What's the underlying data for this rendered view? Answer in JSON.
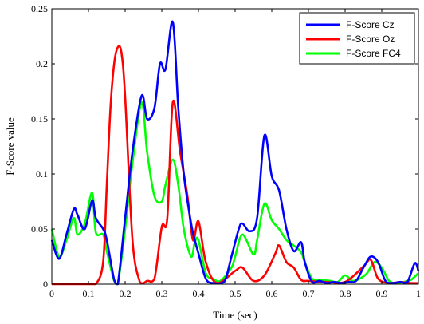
{
  "chart_data": {
    "type": "line",
    "title": "",
    "xlabel": "Time (sec)",
    "ylabel": "F-Score value",
    "xlim": [
      0,
      1
    ],
    "ylim": [
      0,
      0.25
    ],
    "xticks": [
      0,
      0.1,
      0.2,
      0.3,
      0.4,
      0.5,
      0.6,
      0.7,
      0.8,
      0.9,
      1
    ],
    "xtick_labels": [
      "0",
      "0.1",
      "0.2",
      "0.3",
      "0.4",
      "0.5",
      "0.6",
      "0.7",
      "0.8",
      "0.9",
      "1"
    ],
    "yticks": [
      0,
      0.05,
      0.1,
      0.15,
      0.2,
      0.25
    ],
    "ytick_labels": [
      "0",
      "0.05",
      "0.1",
      "0.15",
      "0.2",
      "0.25"
    ],
    "grid": false,
    "legend_position": "top-right",
    "series": [
      {
        "name": "F-Score Cz",
        "color": "#0000ff",
        "x": [
          0,
          0.02,
          0.04,
          0.06,
          0.07,
          0.09,
          0.11,
          0.12,
          0.14,
          0.15,
          0.17,
          0.18,
          0.2,
          0.22,
          0.245,
          0.26,
          0.28,
          0.295,
          0.31,
          0.33,
          0.345,
          0.36,
          0.38,
          0.39,
          0.4,
          0.42,
          0.44,
          0.47,
          0.49,
          0.51,
          0.52,
          0.54,
          0.56,
          0.58,
          0.6,
          0.62,
          0.64,
          0.66,
          0.68,
          0.69,
          0.71,
          0.73,
          0.75,
          0.77,
          0.79,
          0.81,
          0.83,
          0.85,
          0.87,
          0.89,
          0.91,
          0.93,
          0.95,
          0.97,
          0.99,
          1
        ],
        "y": [
          0.04,
          0.023,
          0.045,
          0.068,
          0.063,
          0.05,
          0.076,
          0.06,
          0.05,
          0.04,
          0.004,
          0,
          0.06,
          0.12,
          0.171,
          0.15,
          0.16,
          0.2,
          0.195,
          0.238,
          0.16,
          0.1,
          0.055,
          0.04,
          0.028,
          0.005,
          0.001,
          0.002,
          0.025,
          0.05,
          0.055,
          0.048,
          0.06,
          0.135,
          0.098,
          0.085,
          0.05,
          0.03,
          0.038,
          0.02,
          0.002,
          0.003,
          0.001,
          0.002,
          0.001,
          0.002,
          0.003,
          0.015,
          0.025,
          0.02,
          0.003,
          0.001,
          0.002,
          0.002,
          0.019,
          0.012
        ]
      },
      {
        "name": "F-Score Oz",
        "color": "#ff0000",
        "x": [
          0,
          0.05,
          0.1,
          0.12,
          0.14,
          0.15,
          0.16,
          0.17,
          0.18,
          0.19,
          0.2,
          0.22,
          0.24,
          0.25,
          0.26,
          0.28,
          0.3,
          0.315,
          0.33,
          0.35,
          0.37,
          0.385,
          0.4,
          0.42,
          0.45,
          0.5,
          0.52,
          0.55,
          0.58,
          0.61,
          0.62,
          0.64,
          0.66,
          0.68,
          0.7,
          0.75,
          0.8,
          0.85,
          0.87,
          0.89,
          0.92,
          0.95,
          0.98,
          1
        ],
        "y": [
          0,
          0,
          0,
          0,
          0.02,
          0.09,
          0.16,
          0.2,
          0.215,
          0.21,
          0.17,
          0.04,
          0.002,
          0.001,
          0.003,
          0.005,
          0.052,
          0.06,
          0.165,
          0.12,
          0.08,
          0.04,
          0.057,
          0.02,
          0.001,
          0.012,
          0.015,
          0.003,
          0.008,
          0.028,
          0.035,
          0.02,
          0.015,
          0.004,
          0.003,
          0.002,
          0.002,
          0.016,
          0.022,
          0.005,
          0.001,
          0.002,
          0.001,
          0.001
        ]
      },
      {
        "name": "F-Score FC4",
        "color": "#00ff00",
        "x": [
          0,
          0.02,
          0.04,
          0.06,
          0.07,
          0.09,
          0.11,
          0.12,
          0.14,
          0.15,
          0.17,
          0.18,
          0.2,
          0.22,
          0.245,
          0.26,
          0.28,
          0.3,
          0.31,
          0.33,
          0.345,
          0.36,
          0.38,
          0.39,
          0.4,
          0.42,
          0.44,
          0.46,
          0.49,
          0.5,
          0.52,
          0.55,
          0.56,
          0.58,
          0.6,
          0.62,
          0.64,
          0.66,
          0.68,
          0.69,
          0.71,
          0.73,
          0.76,
          0.78,
          0.8,
          0.82,
          0.84,
          0.86,
          0.88,
          0.9,
          0.92,
          0.94,
          0.96,
          0.98,
          1
        ],
        "y": [
          0.05,
          0.025,
          0.04,
          0.06,
          0.045,
          0.055,
          0.083,
          0.047,
          0.045,
          0.03,
          0.003,
          0,
          0.05,
          0.11,
          0.165,
          0.12,
          0.08,
          0.075,
          0.09,
          0.113,
          0.09,
          0.05,
          0.025,
          0.038,
          0.04,
          0.01,
          0.005,
          0.003,
          0.015,
          0.025,
          0.045,
          0.027,
          0.04,
          0.073,
          0.058,
          0.05,
          0.04,
          0.035,
          0.029,
          0.02,
          0.005,
          0.004,
          0.003,
          0.002,
          0.008,
          0.003,
          0.005,
          0.01,
          0.02,
          0.015,
          0.003,
          0.001,
          0.002,
          0.004,
          0.01
        ]
      }
    ]
  }
}
